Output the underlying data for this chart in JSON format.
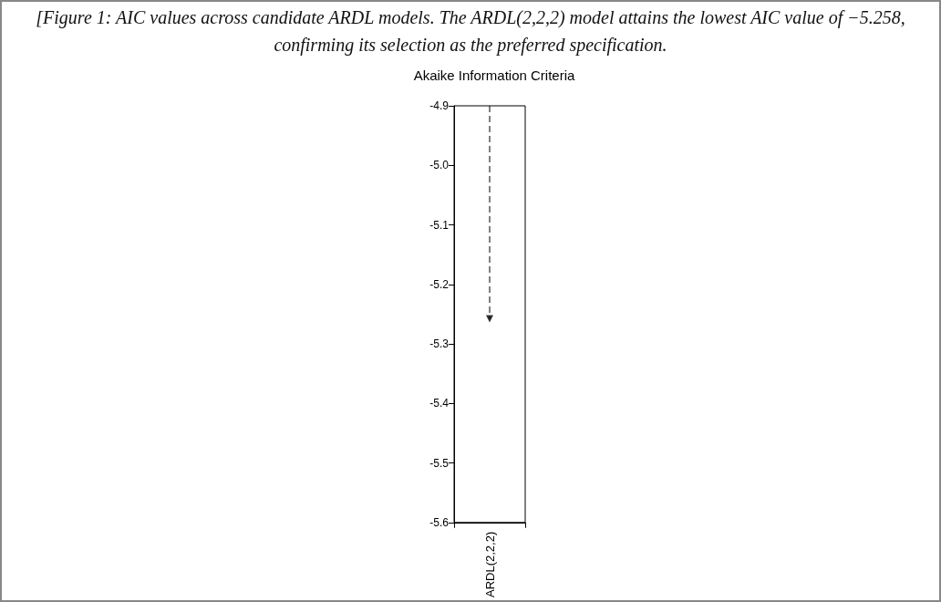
{
  "chart_data": {
    "type": "lollipop",
    "title": "Akaike Information Criteria",
    "annotations": [
      "[Figure 1: AIC values across candidate ARDL models. The ARDL(2,2,2) model attains the lowest AIC value of −5.258, confirming its selection as the preferred specification."
    ],
    "categories": [
      "ARDL(2,2,2)"
    ],
    "values": [
      -5.258
    ],
    "color": "#000000",
    "ylim": [
      -5.6,
      -4.9
    ],
    "yticks": [
      -4.9,
      {
        "value": -5,
        "label": "-5.0"
      },
      -5.1,
      -5.2,
      -5.3,
      -5.4,
      -5.5,
      -5.6
    ],
    "grid": false,
    "marker": "triangle",
    "line_style": "dashed"
  }
}
